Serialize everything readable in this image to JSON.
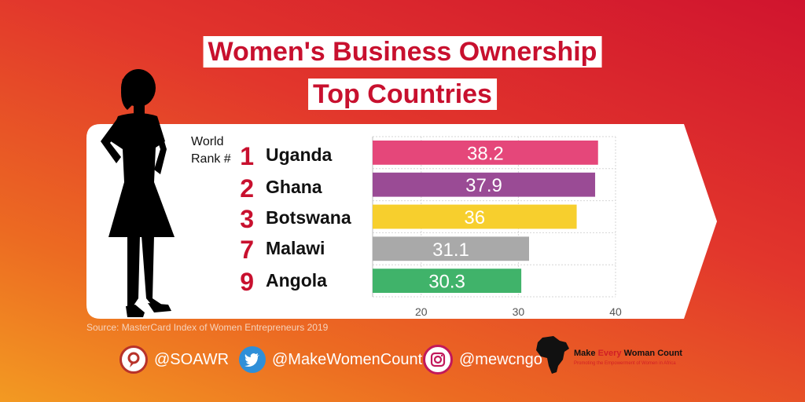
{
  "title_line1": "Women's Business Ownership",
  "title_line2": "Top Countries",
  "world_rank_label_1": "World",
  "world_rank_label_2": "Rank #",
  "rows": [
    {
      "rank": "1",
      "country": "Uganda",
      "value": 38.2,
      "color": "#e5477a"
    },
    {
      "rank": "2",
      "country": "Ghana",
      "value": 37.9,
      "color": "#9a4b95"
    },
    {
      "rank": "3",
      "country": "Botswana",
      "value": 36,
      "color": "#f7cf2d"
    },
    {
      "rank": "7",
      "country": "Malawi",
      "value": 31.1,
      "color": "#a9a9a9"
    },
    {
      "rank": "9",
      "country": "Angola",
      "value": 30.3,
      "color": "#40b36a"
    }
  ],
  "chart_data": {
    "type": "bar",
    "orientation": "horizontal",
    "categories": [
      "Uganda",
      "Ghana",
      "Botswana",
      "Malawi",
      "Angola"
    ],
    "values": [
      38.2,
      37.9,
      36,
      31.1,
      30.3
    ],
    "data_labels": [
      "38.2",
      "37.9",
      "36",
      "31.1",
      "30.3"
    ],
    "xlim": [
      15,
      40
    ],
    "ticks": [
      20,
      30,
      40
    ],
    "tick_labels": [
      "20",
      "30",
      "40"
    ],
    "grid": true
  },
  "source": "Source: MasterCard Index of Women Entrepreneurs 2019",
  "social": {
    "soawr": "@SOAWR",
    "twitter": "@MakeWomenCount",
    "instagram": "@mewcngo"
  },
  "brand": {
    "make": "Make ",
    "every": "Every",
    "rest": " Woman Count",
    "tagline": "Promoting the Empowerment of Women in Africa",
    "accent": "#d11f25"
  },
  "colors": {
    "accent": "#c8102e"
  }
}
